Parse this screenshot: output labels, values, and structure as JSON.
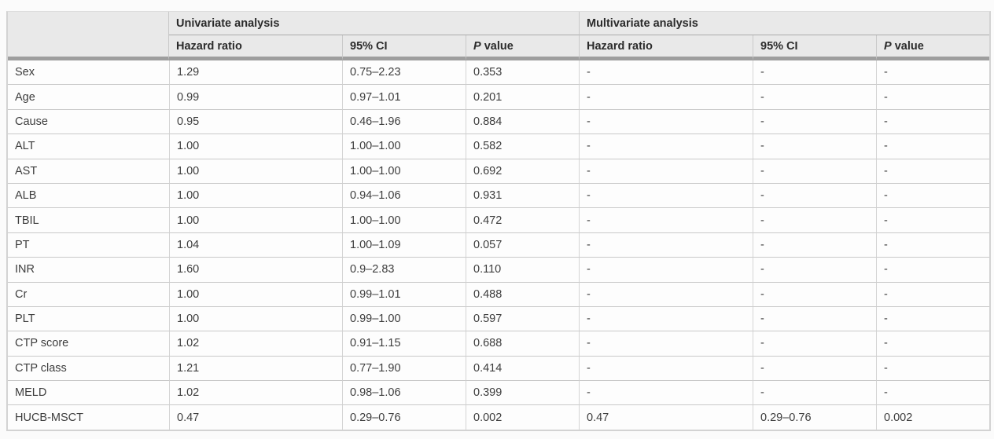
{
  "table": {
    "corner_label": "",
    "groups": [
      {
        "label": "Univariate analysis"
      },
      {
        "label": "Multivariate analysis"
      }
    ],
    "subheaders": [
      {
        "italic": "",
        "label": "Hazard ratio"
      },
      {
        "italic": "",
        "label": "95% CI"
      },
      {
        "italic": "P",
        "label": " value"
      },
      {
        "italic": "",
        "label": "Hazard ratio"
      },
      {
        "italic": "",
        "label": "95% CI"
      },
      {
        "italic": "P",
        "label": " value"
      }
    ],
    "rows": [
      {
        "variable": "Sex",
        "values": [
          "1.29",
          "0.75–2.23",
          "0.353",
          "-",
          "-",
          "-"
        ]
      },
      {
        "variable": "Age",
        "values": [
          "0.99",
          "0.97–1.01",
          "0.201",
          "-",
          "-",
          "-"
        ]
      },
      {
        "variable": "Cause",
        "values": [
          "0.95",
          "0.46–1.96",
          "0.884",
          "-",
          "-",
          "-"
        ]
      },
      {
        "variable": "ALT",
        "values": [
          "1.00",
          "1.00–1.00",
          "0.582",
          "-",
          "-",
          "-"
        ]
      },
      {
        "variable": "AST",
        "values": [
          "1.00",
          "1.00–1.00",
          "0.692",
          "-",
          "-",
          "-"
        ]
      },
      {
        "variable": "ALB",
        "values": [
          "1.00",
          "0.94–1.06",
          "0.931",
          "-",
          "-",
          "-"
        ]
      },
      {
        "variable": "TBIL",
        "values": [
          "1.00",
          "1.00–1.00",
          "0.472",
          "-",
          "-",
          "-"
        ]
      },
      {
        "variable": "PT",
        "values": [
          "1.04",
          "1.00–1.09",
          "0.057",
          "-",
          "-",
          "-"
        ]
      },
      {
        "variable": "INR",
        "values": [
          "1.60",
          "0.9–2.83",
          "0.110",
          "-",
          "-",
          "-"
        ]
      },
      {
        "variable": "Cr",
        "values": [
          "1.00",
          "0.99–1.01",
          "0.488",
          "-",
          "-",
          "-"
        ]
      },
      {
        "variable": "PLT",
        "values": [
          "1.00",
          "0.99–1.00",
          "0.597",
          "-",
          "-",
          "-"
        ]
      },
      {
        "variable": "CTP score",
        "values": [
          "1.02",
          "0.91–1.15",
          "0.688",
          "-",
          "-",
          "-"
        ]
      },
      {
        "variable": "CTP class",
        "values": [
          "1.21",
          "0.77–1.90",
          "0.414",
          "-",
          "-",
          "-"
        ]
      },
      {
        "variable": "MELD",
        "values": [
          "1.02",
          "0.98–1.06",
          "0.399",
          "-",
          "-",
          "-"
        ]
      },
      {
        "variable": "HUCB-MSCT",
        "values": [
          "0.47",
          "0.29–0.76",
          "0.002",
          "0.47",
          "0.29–0.76",
          "0.002"
        ]
      }
    ]
  },
  "colors": {
    "page_background": "#fbfbfb",
    "header_background": "#e9e9e9",
    "header_separator": "#9e9e9e",
    "group_row_divider": "#ababab",
    "outer_border": "#d3d3d3",
    "row_grid_line": "#c9c9c9",
    "column_grid_line": "#d4d4d4",
    "header_text": "#2b2b2b",
    "body_text": "#3d3d3d"
  }
}
